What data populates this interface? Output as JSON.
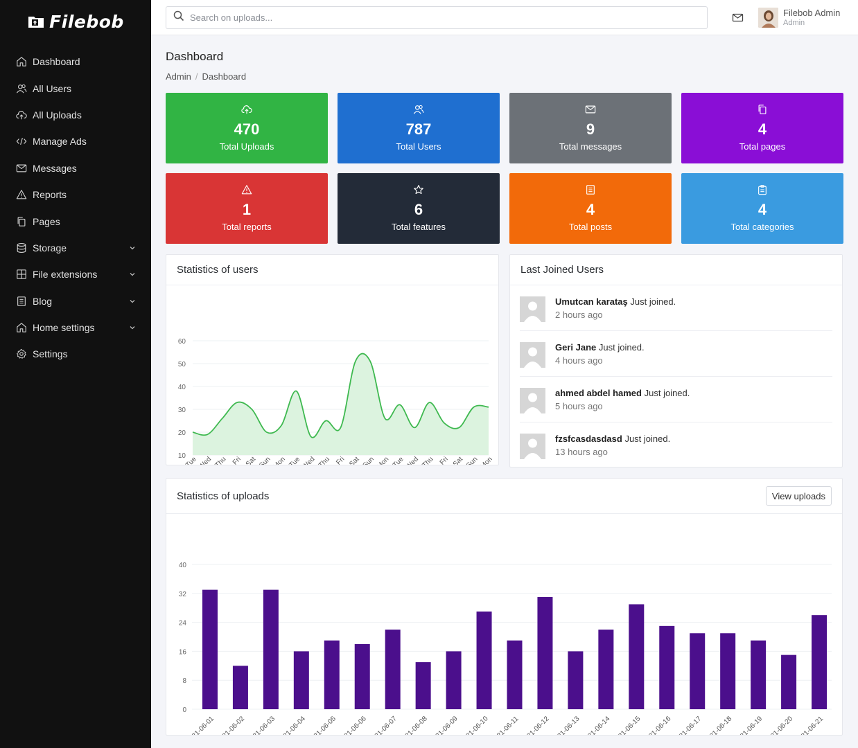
{
  "sidebar": {
    "logo": "Filebob",
    "items": [
      {
        "label": "Dashboard",
        "icon": "home-icon",
        "chevron": false
      },
      {
        "label": "All Users",
        "icon": "users-icon",
        "chevron": false
      },
      {
        "label": "All Uploads",
        "icon": "cloud-upload-icon",
        "chevron": false
      },
      {
        "label": "Manage Ads",
        "icon": "code-icon",
        "chevron": false
      },
      {
        "label": "Messages",
        "icon": "mail-icon",
        "chevron": false
      },
      {
        "label": "Reports",
        "icon": "warning-icon",
        "chevron": false
      },
      {
        "label": "Pages",
        "icon": "copy-icon",
        "chevron": false
      },
      {
        "label": "Storage",
        "icon": "database-icon",
        "chevron": true
      },
      {
        "label": "File extensions",
        "icon": "grid-icon",
        "chevron": true
      },
      {
        "label": "Blog",
        "icon": "newspaper-icon",
        "chevron": true
      },
      {
        "label": "Home settings",
        "icon": "home-icon",
        "chevron": true
      },
      {
        "label": "Settings",
        "icon": "gear-icon",
        "chevron": false
      }
    ]
  },
  "topbar": {
    "search_placeholder": "Search on uploads...",
    "user_name": "Filebob Admin",
    "user_role": "Admin"
  },
  "page": {
    "title": "Dashboard",
    "breadcrumb": [
      "Admin",
      "Dashboard"
    ]
  },
  "stats": [
    {
      "value": "470",
      "label": "Total Uploads",
      "color": "#31b444",
      "icon": "cloud-upload-icon"
    },
    {
      "value": "787",
      "label": "Total Users",
      "color": "#1f6fd0",
      "icon": "users-icon"
    },
    {
      "value": "9",
      "label": "Total messages",
      "color": "#6c7177",
      "icon": "mail-icon"
    },
    {
      "value": "4",
      "label": "Total pages",
      "color": "#8a0ed6",
      "icon": "copy-icon"
    },
    {
      "value": "1",
      "label": "Total reports",
      "color": "#d93535",
      "icon": "warning-icon"
    },
    {
      "value": "6",
      "label": "Total features",
      "color": "#232b38",
      "icon": "star-icon"
    },
    {
      "value": "4",
      "label": "Total posts",
      "color": "#f26a0a",
      "icon": "newspaper-icon"
    },
    {
      "value": "4",
      "label": "Total categories",
      "color": "#3a9be0",
      "icon": "clipboard-icon"
    }
  ],
  "users_panel": {
    "title": "Statistics of users"
  },
  "joined_panel": {
    "title": "Last Joined Users",
    "users": [
      {
        "name": "Umutcan karataş",
        "action": "Just joined.",
        "time": "2 hours ago"
      },
      {
        "name": "Geri Jane",
        "action": "Just joined.",
        "time": "4 hours ago"
      },
      {
        "name": "ahmed abdel hamed",
        "action": "Just joined.",
        "time": "5 hours ago"
      },
      {
        "name": "fzsfcasdasdasd",
        "action": "Just joined.",
        "time": "13 hours ago"
      }
    ]
  },
  "uploads_panel": {
    "title": "Statistics of uploads",
    "button": "View uploads"
  },
  "chart_data": [
    {
      "type": "area",
      "categories": [
        "Tue",
        "Wed",
        "Thu",
        "Fri",
        "Sat",
        "Sun",
        "Mon",
        "Tue",
        "Wed",
        "Thu",
        "Fri",
        "Sat",
        "Sun",
        "Mon",
        "Tue",
        "Wed",
        "Thu",
        "Fri",
        "Sat",
        "Sun",
        "Mon"
      ],
      "values": [
        20,
        19,
        26,
        33,
        30,
        20,
        23,
        38,
        18,
        25,
        22,
        51,
        51,
        26,
        32,
        22,
        33,
        24,
        22,
        31,
        31
      ],
      "yticks": [
        10,
        20,
        30,
        40,
        50,
        60
      ],
      "ylim": [
        10,
        60
      ],
      "grid": true,
      "line_color": "#3fb950",
      "fill_color": "#dcf3df"
    },
    {
      "type": "bar",
      "categories": [
        "2021-06-01",
        "2021-06-02",
        "2021-06-03",
        "2021-06-04",
        "2021-06-05",
        "2021-06-06",
        "2021-06-07",
        "2021-06-08",
        "2021-06-09",
        "2021-06-10",
        "2021-06-11",
        "2021-06-12",
        "2021-06-13",
        "2021-06-14",
        "2021-06-15",
        "2021-06-16",
        "2021-06-17",
        "2021-06-18",
        "2021-06-19",
        "2021-06-20",
        "2021-06-21"
      ],
      "values": [
        33,
        12,
        33,
        16,
        19,
        18,
        22,
        13,
        16,
        27,
        19,
        31,
        16,
        22,
        29,
        23,
        21,
        21,
        19,
        15,
        26
      ],
      "yticks": [
        0,
        8,
        16,
        24,
        32,
        40
      ],
      "ylim": [
        0,
        40
      ],
      "grid": true,
      "bar_color": "#4b0f8c"
    }
  ]
}
